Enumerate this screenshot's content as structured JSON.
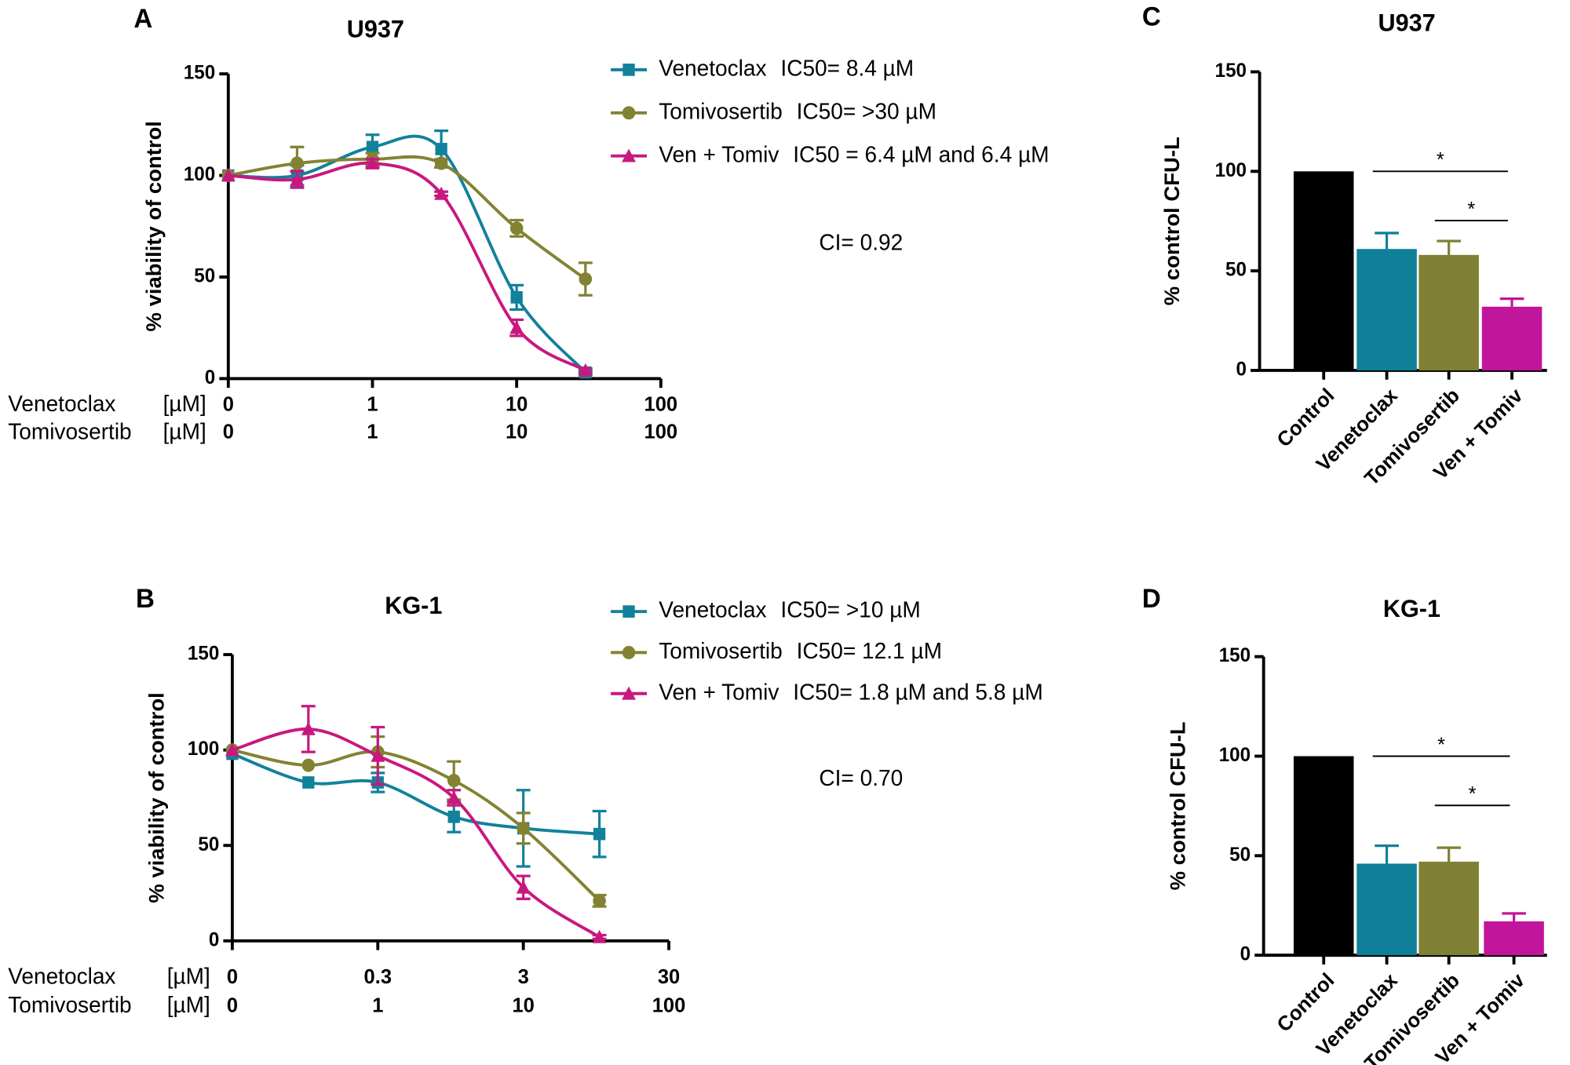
{
  "chart_data": [
    {
      "type": "line",
      "letter": "A",
      "title": "U937",
      "ylabel": "% viability of control",
      "xscale": "log",
      "x_label": "Venetoclax",
      "x2_label": "Tomivosertib",
      "unit": "[µM]",
      "x": [
        0.1,
        0.3,
        1,
        3,
        10,
        30
      ],
      "xlim": [
        0.1,
        100
      ],
      "xticks": [
        {
          "value": 0.1,
          "label": "0"
        },
        1,
        10,
        100
      ],
      "x2lim": [
        0.1,
        100
      ],
      "x2ticks": [
        {
          "value": 0.1,
          "label": "0"
        },
        1,
        10,
        100
      ],
      "ylim": [
        0,
        150
      ],
      "yticks": [
        0,
        50,
        100,
        150
      ],
      "series": [
        {
          "name": "Venetoclax",
          "ic50_label": "IC50= 8.4 µM",
          "color": "#12819b",
          "marker": "square",
          "values": [
            100,
            100,
            114,
            113,
            40,
            3
          ],
          "errors": [
            0,
            5,
            6,
            9,
            6,
            1
          ]
        },
        {
          "name": "Tomivosertib",
          "ic50_label": "IC50= >30 µM",
          "color": "#828232",
          "marker": "circle",
          "values": [
            100,
            106,
            108,
            106,
            74,
            49
          ],
          "errors": [
            0,
            8,
            3,
            2,
            4,
            8
          ]
        },
        {
          "name": "Ven + Tomiv",
          "ic50_label": "IC50 = 6.4 µM and 6.4 µM",
          "color": "#c8187f",
          "marker": "triangle",
          "values": [
            100,
            98,
            106,
            91,
            25,
            4
          ],
          "errors": [
            0,
            4,
            2,
            1,
            4,
            1
          ]
        }
      ],
      "annotation": "CI= 0.92"
    },
    {
      "type": "line",
      "letter": "B",
      "title": "KG-1",
      "ylabel": "% viability of control",
      "xscale": "log",
      "x_label": "Venetoclax",
      "x2_label": "Tomivosertib",
      "unit": "[µM]",
      "x": [
        0.03,
        0.1,
        0.3,
        1,
        3,
        10
      ],
      "xlim": [
        0.03,
        30
      ],
      "xticks": [
        {
          "value": 0.03,
          "label": "0"
        },
        0.3,
        3,
        30
      ],
      "x2lim": [
        0.1,
        100
      ],
      "x2ticks": [
        {
          "value": 0.1,
          "label": "0"
        },
        1,
        10,
        100
      ],
      "ylim": [
        0,
        150
      ],
      "yticks": [
        0,
        50,
        100,
        150
      ],
      "series": [
        {
          "name": "Venetoclax",
          "ic50_label": "IC50= >10 µM",
          "color": "#12819b",
          "marker": "square",
          "values": [
            98,
            83,
            83,
            65,
            59,
            56
          ],
          "errors": [
            0,
            0,
            5,
            8,
            20,
            12
          ]
        },
        {
          "name": "Tomivosertib",
          "ic50_label": "IC50= 12.1 µM",
          "color": "#828232",
          "marker": "circle",
          "values": [
            100,
            92,
            99,
            84,
            59,
            21
          ],
          "errors": [
            0,
            0,
            8,
            10,
            8,
            3
          ]
        },
        {
          "name": "Ven + Tomiv",
          "ic50_label": "IC50= 1.8 µM and 5.8 µM",
          "color": "#c8187f",
          "marker": "triangle",
          "values": [
            100,
            111,
            97,
            75,
            28,
            2
          ],
          "errors": [
            0,
            12,
            15,
            4,
            6,
            1
          ]
        }
      ],
      "annotation": "CI= 0.70"
    },
    {
      "type": "bar",
      "letter": "C",
      "title": "U937",
      "ylabel": "% control CFU-L",
      "categories": [
        "Control",
        "Venetoclax",
        "Tomivosertib",
        "Ven + Tomiv"
      ],
      "values": [
        100,
        61,
        58,
        32
      ],
      "errors": [
        0,
        8,
        7,
        4
      ],
      "colors": [
        "#000000",
        "#0f8098",
        "#808034",
        "#c1169b"
      ],
      "ylim": [
        0,
        150
      ],
      "yticks": [
        0,
        50,
        100,
        150
      ],
      "significance_labels": [
        "*",
        "*"
      ]
    },
    {
      "type": "bar",
      "letter": "D",
      "title": "KG-1",
      "ylabel": "% control CFU-L",
      "categories": [
        "Control",
        "Venetoclax",
        "Tomivosertib",
        "Ven + Tomiv"
      ],
      "values": [
        100,
        46,
        47,
        17
      ],
      "errors": [
        0,
        9,
        7,
        4
      ],
      "colors": [
        "#000000",
        "#0f8098",
        "#808034",
        "#c1169b"
      ],
      "ylim": [
        0,
        150
      ],
      "yticks": [
        0,
        50,
        100,
        150
      ],
      "significance_labels": [
        "*",
        "*"
      ]
    }
  ]
}
